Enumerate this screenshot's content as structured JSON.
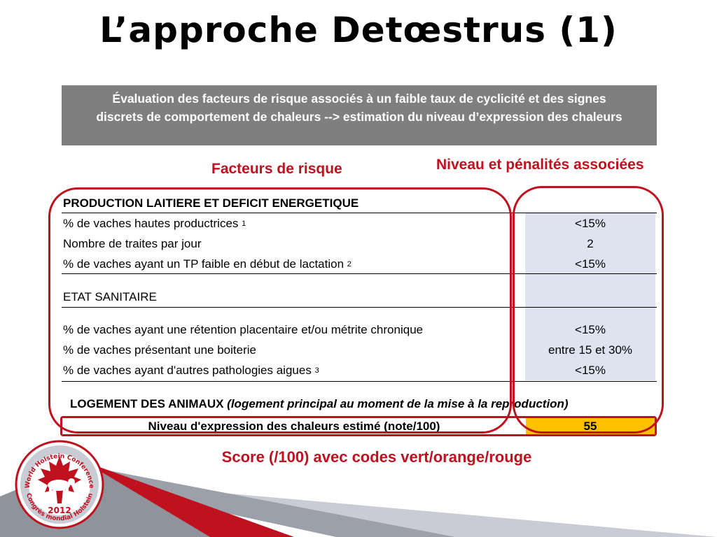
{
  "title": "L’approche Detœstrus (1)",
  "header": {
    "line1": "Évaluation des facteurs de risque associés à un faible taux de cyclicité et des signes",
    "line2": "discrets de comportement de chaleurs --> estimation du niveau d’expression des chaleurs"
  },
  "columns": {
    "left": "Facteurs de risque",
    "right": "Niveau et pénalités associées"
  },
  "sections": {
    "production": {
      "heading": "PRODUCTION LAITIERE ET DEFICIT ENERGETIQUE",
      "rows": [
        {
          "label": "% de vaches hautes productrices",
          "sup": "1",
          "value": "<15%"
        },
        {
          "label": "Nombre de traites par jour",
          "sup": "",
          "value": "2"
        },
        {
          "label": "% de vaches ayant un TP faible en début de lactation",
          "sup": "2",
          "value": "<15%"
        }
      ]
    },
    "sanitaire": {
      "heading": "ETAT SANITAIRE",
      "rows": [
        {
          "label": "% de vaches ayant une rétention placentaire et/ou métrite chronique",
          "sup": "",
          "value": "<15%"
        },
        {
          "label": "% de vaches présentant une boiterie",
          "sup": "",
          "value": "entre 15 et 30%"
        },
        {
          "label": "% de vaches ayant d'autres pathologies aigues",
          "sup": "3",
          "value": "<15%"
        }
      ]
    },
    "logement": {
      "heading": "LOGEMENT DES ANIMAUX",
      "detail": "(logement principal au moment de la mise à la reproduction)"
    }
  },
  "score": {
    "label": "Niveau d'expression des chaleurs estimé (note/100)",
    "value": "55",
    "value_color": "#ffc000"
  },
  "caption": "Score (/100) avec codes vert/orange/rouge",
  "logo": {
    "top_text": "World Holstein Conference",
    "bottom_text": "Congrès mondial Holstein",
    "year": "2012"
  },
  "colors": {
    "accent_red": "#c0111f",
    "header_gray": "#7f7f7f",
    "value_blue": "#dde4f0"
  }
}
